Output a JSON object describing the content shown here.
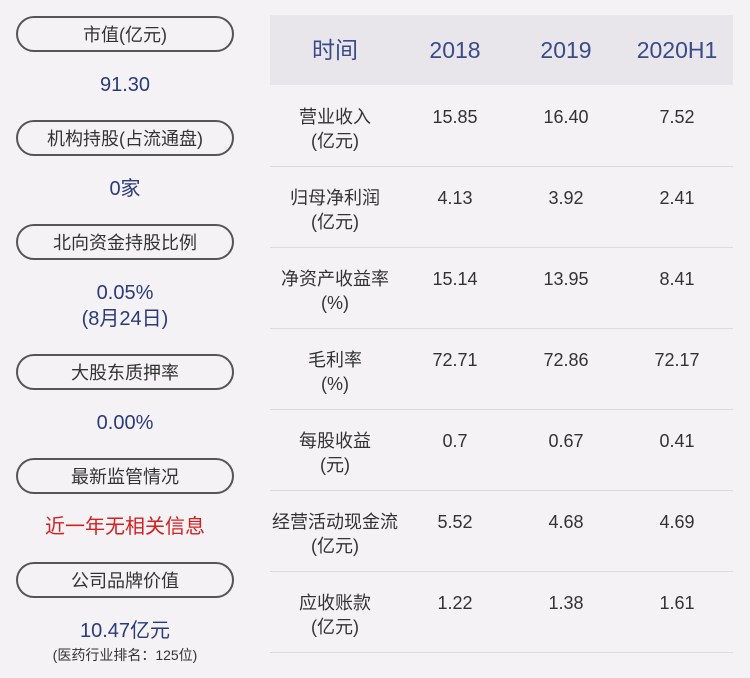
{
  "left": {
    "items": [
      {
        "label": "市值(亿元)",
        "value": "91.30"
      },
      {
        "label": "机构持股(占流通盘)",
        "value": "0家"
      },
      {
        "label": "北向资金持股比例",
        "value": "0.05%",
        "note": "(8月24日)"
      },
      {
        "label": "大股东质押率",
        "value": "0.00%"
      },
      {
        "label": "最新监管情况",
        "value": "近一年无相关信息",
        "alert": true
      },
      {
        "label": "公司品牌价值",
        "value": "10.47亿元",
        "note": "(医药行业排名：125位)"
      }
    ]
  },
  "table": {
    "header": [
      "时间",
      "2018",
      "2019",
      "2020H1"
    ],
    "rows": [
      {
        "name": "营业收入",
        "unit": "(亿元)",
        "values": [
          "15.85",
          "16.40",
          "7.52"
        ]
      },
      {
        "name": "归母净利润",
        "unit": "(亿元)",
        "values": [
          "4.13",
          "3.92",
          "2.41"
        ]
      },
      {
        "name": "净资产收益率",
        "unit": "(%)",
        "values": [
          "15.14",
          "13.95",
          "8.41"
        ]
      },
      {
        "name": "毛利率",
        "unit": "(%)",
        "values": [
          "72.71",
          "72.86",
          "72.17"
        ]
      },
      {
        "name": "每股收益",
        "unit": "(元)",
        "values": [
          "0.7",
          "0.67",
          "0.41"
        ]
      },
      {
        "name": "经营活动现金流",
        "unit": "(亿元)",
        "values": [
          "5.52",
          "4.68",
          "4.69"
        ]
      },
      {
        "name": "应收账款",
        "unit": "(亿元)",
        "values": [
          "1.22",
          "1.38",
          "1.61"
        ]
      }
    ]
  }
}
